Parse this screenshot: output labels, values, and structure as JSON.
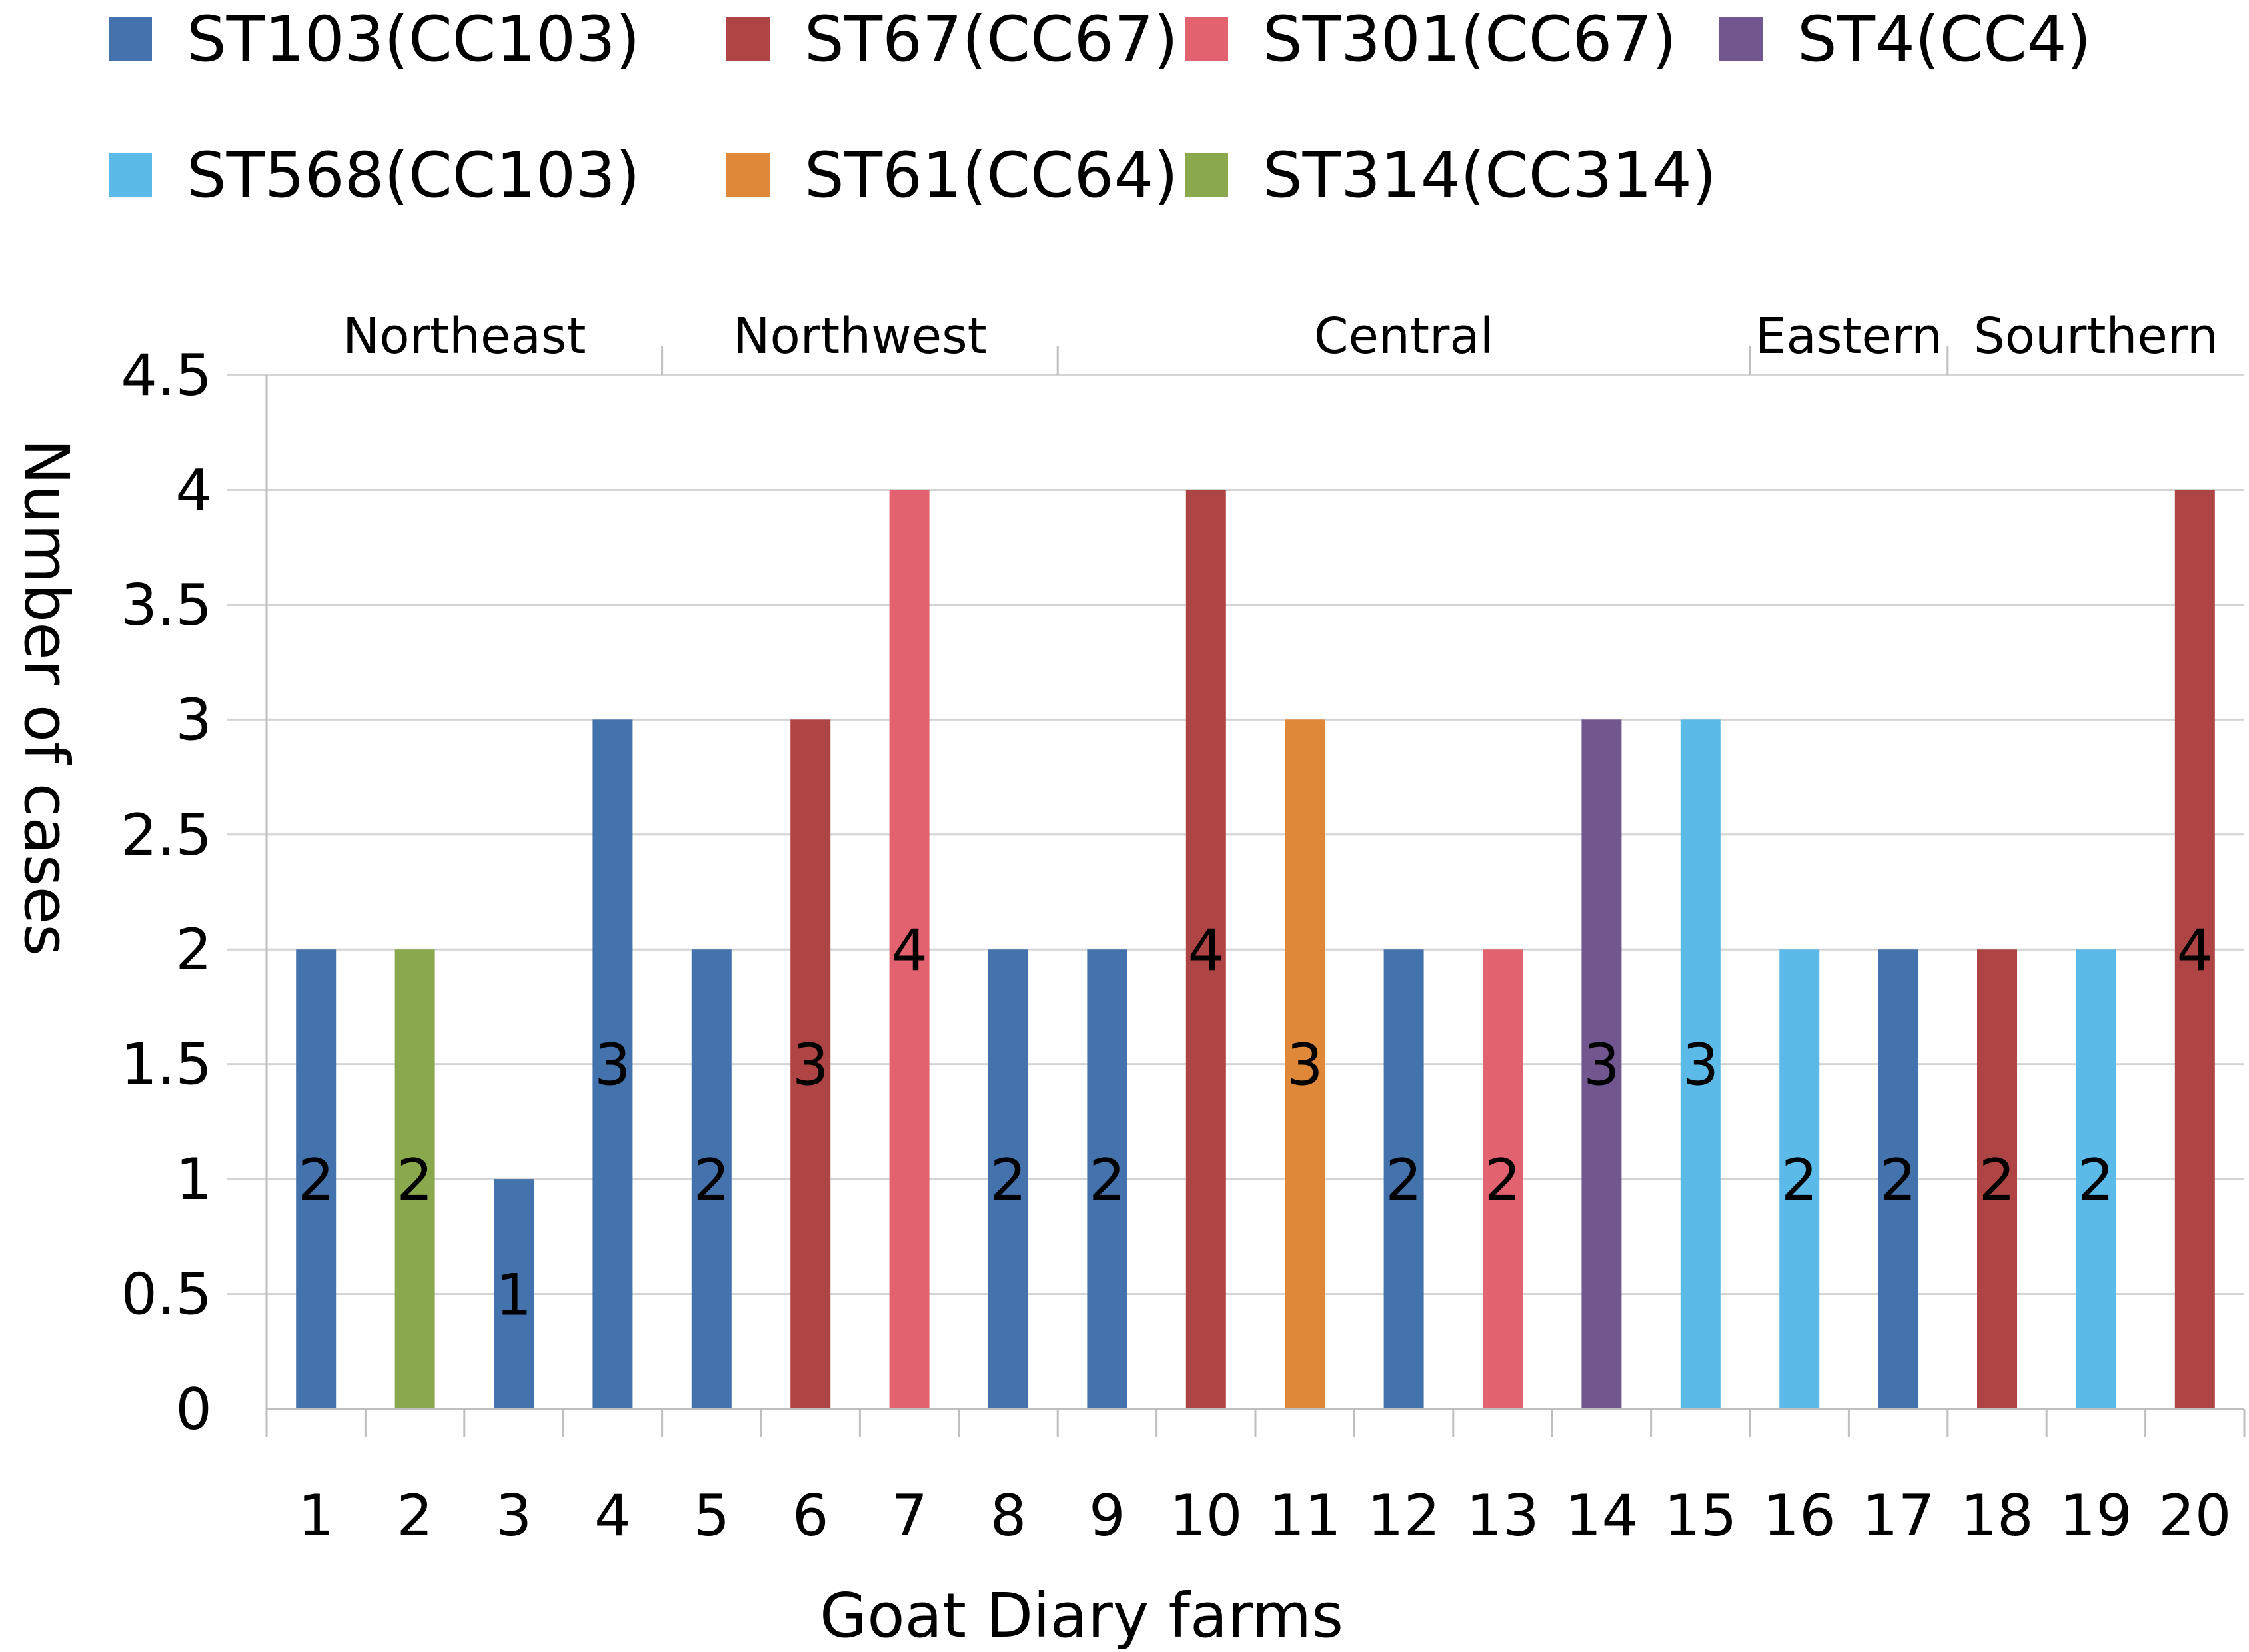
{
  "chart_data": {
    "type": "bar",
    "xlabel": "Goat Diary farms",
    "ylabel": "Number of cases",
    "ylim": [
      0,
      4.5
    ],
    "yticks": [
      "0",
      "0.5",
      "1",
      "1.5",
      "2",
      "2.5",
      "3",
      "3.5",
      "4",
      "4.5"
    ],
    "grid": true,
    "legend_position": "top",
    "categories": [
      "1",
      "2",
      "3",
      "4",
      "5",
      "6",
      "7",
      "8",
      "9",
      "10",
      "11",
      "12",
      "13",
      "14",
      "15",
      "16",
      "17",
      "18",
      "19",
      "20"
    ],
    "series": [
      {
        "name": "ST103(CC103)",
        "color": "#4472AD"
      },
      {
        "name": "ST67(CC67)",
        "color": "#AE4444"
      },
      {
        "name": "ST301(CC67)",
        "color": "#E2626F"
      },
      {
        "name": "ST4(CC4)",
        "color": "#71568F"
      },
      {
        "name": "ST568(CC103)",
        "color": "#5CBAE8"
      },
      {
        "name": "ST61(CC64)",
        "color": "#E0883A"
      },
      {
        "name": "ST314(CC314)",
        "color": "#8AA84C"
      }
    ],
    "bars": [
      {
        "farm": "1",
        "value": 2,
        "series": "ST103(CC103)",
        "label": "2"
      },
      {
        "farm": "2",
        "value": 2,
        "series": "ST314(CC314)",
        "label": "2"
      },
      {
        "farm": "3",
        "value": 1,
        "series": "ST103(CC103)",
        "label": "1"
      },
      {
        "farm": "4",
        "value": 3,
        "series": "ST103(CC103)",
        "label": "3"
      },
      {
        "farm": "5",
        "value": 2,
        "series": "ST103(CC103)",
        "label": "2"
      },
      {
        "farm": "6",
        "value": 3,
        "series": "ST67(CC67)",
        "label": "3"
      },
      {
        "farm": "7",
        "value": 4,
        "series": "ST301(CC67)",
        "label": "4"
      },
      {
        "farm": "8",
        "value": 2,
        "series": "ST103(CC103)",
        "label": "2"
      },
      {
        "farm": "9",
        "value": 2,
        "series": "ST103(CC103)",
        "label": "2"
      },
      {
        "farm": "10",
        "value": 4,
        "series": "ST67(CC67)",
        "label": "4"
      },
      {
        "farm": "11",
        "value": 3,
        "series": "ST61(CC64)",
        "label": "3"
      },
      {
        "farm": "12",
        "value": 2,
        "series": "ST103(CC103)",
        "label": "2"
      },
      {
        "farm": "13",
        "value": 2,
        "series": "ST301(CC67)",
        "label": "2"
      },
      {
        "farm": "14",
        "value": 3,
        "series": "ST4(CC4)",
        "label": "3"
      },
      {
        "farm": "15",
        "value": 3,
        "series": "ST568(CC103)",
        "label": "3"
      },
      {
        "farm": "16",
        "value": 2,
        "series": "ST568(CC103)",
        "label": "2"
      },
      {
        "farm": "17",
        "value": 2,
        "series": "ST103(CC103)",
        "label": "2"
      },
      {
        "farm": "18",
        "value": 2,
        "series": "ST67(CC67)",
        "label": "2"
      },
      {
        "farm": "19",
        "value": 2,
        "series": "ST568(CC103)",
        "label": "2"
      },
      {
        "farm": "20",
        "value": 4,
        "series": "ST67(CC67)",
        "label": "4"
      }
    ],
    "regions": [
      {
        "name": "Northeast",
        "start_farm": 1,
        "end_farm": 4
      },
      {
        "name": "Northwest",
        "start_farm": 5,
        "end_farm": 8
      },
      {
        "name": "Central",
        "start_farm": 9,
        "end_farm": 15
      },
      {
        "name": "Eastern",
        "start_farm": 16,
        "end_farm": 17
      },
      {
        "name": "Sourthern",
        "start_farm": 18,
        "end_farm": 20
      }
    ]
  }
}
